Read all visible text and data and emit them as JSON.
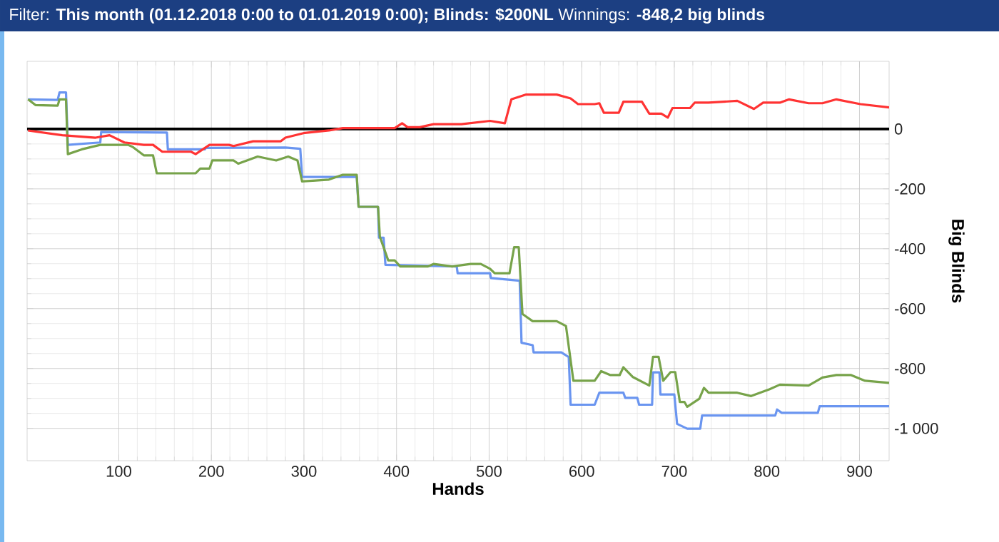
{
  "chart_data": {
    "type": "line",
    "title": "Filter: **This month (01.12.2018 0:00 to 01.01.2019 0:00); Blinds: $200NL** Winnings: **-848,2 big blinds**",
    "xlabel": "Hands",
    "ylabel": "Big Blinds",
    "xlim": [
      1,
      932
    ],
    "ylim": [
      -1108,
      226
    ],
    "xticks": [
      100,
      200,
      300,
      400,
      500,
      600,
      700,
      800,
      900
    ],
    "yticks": [
      0,
      -200,
      -400,
      -600,
      -800,
      {
        "value": -1000,
        "label": "-1 000"
      }
    ],
    "grid": true,
    "ref_lines": [
      {
        "axis": "y",
        "value": 0,
        "color": "#000000"
      }
    ],
    "series": [
      {
        "color": "#6a95f0",
        "x": [
          2,
          34,
          36,
          43,
          45,
          80,
          81,
          152,
          153,
          193,
          194,
          280,
          296,
          298,
          357,
          359,
          380,
          381,
          386,
          388,
          465,
          466,
          501,
          502,
          533,
          535,
          547,
          548,
          578,
          586,
          588,
          614,
          619,
          645,
          647,
          660,
          662,
          676,
          677,
          684,
          685,
          700,
          703,
          714,
          728,
          730,
          809,
          811,
          816,
          855,
          857,
          932
        ],
        "values": [
          99,
          97,
          122,
          122,
          -53,
          -45,
          -10,
          -12,
          -68,
          -68,
          -63,
          -62,
          -66,
          -160,
          -160,
          -260,
          -260,
          -363,
          -363,
          -454,
          -459,
          -482,
          -482,
          -498,
          -507,
          -714,
          -722,
          -746,
          -746,
          -762,
          -921,
          -921,
          -881,
          -881,
          -898,
          -898,
          -921,
          -921,
          -813,
          -813,
          -887,
          -887,
          -985,
          -1001,
          -1001,
          -957,
          -957,
          -937,
          -948,
          -948,
          -926,
          -926
        ]
      },
      {
        "color": "#77a34a",
        "x": [
          2,
          10,
          34,
          36,
          43,
          45,
          60,
          80,
          110,
          115,
          127,
          137,
          141,
          157,
          183,
          188,
          198,
          201,
          224,
          229,
          250,
          270,
          283,
          293,
          298,
          327,
          342,
          357,
          359,
          380,
          382,
          391,
          398,
          404,
          434,
          440,
          460,
          480,
          491,
          501,
          506,
          522,
          527,
          532,
          536,
          547,
          573,
          583,
          591,
          614,
          621,
          631,
          641,
          645,
          655,
          673,
          677,
          683,
          688,
          696,
          701,
          706,
          711,
          714,
          727,
          732,
          737,
          768,
          783,
          803,
          814,
          845,
          860,
          875,
          891,
          906,
          932
        ],
        "values": [
          99,
          80,
          78,
          99,
          99,
          -84,
          -68,
          -53,
          -53,
          -60,
          -88,
          -88,
          -148,
          -148,
          -148,
          -132,
          -132,
          -105,
          -105,
          -116,
          -92,
          -105,
          -92,
          -105,
          -175,
          -169,
          -153,
          -153,
          -260,
          -260,
          -360,
          -439,
          -439,
          -459,
          -459,
          -451,
          -459,
          -451,
          -451,
          -467,
          -482,
          -482,
          -395,
          -395,
          -618,
          -642,
          -642,
          -658,
          -841,
          -841,
          -809,
          -822,
          -822,
          -796,
          -828,
          -857,
          -761,
          -761,
          -841,
          -812,
          -812,
          -912,
          -912,
          -928,
          -901,
          -865,
          -881,
          -881,
          -892,
          -869,
          -854,
          -857,
          -830,
          -822,
          -822,
          -841,
          -848
        ]
      },
      {
        "color": "#ff3333",
        "x": [
          2,
          39,
          75,
          90,
          106,
          127,
          137,
          147,
          178,
          183,
          198,
          219,
          224,
          245,
          275,
          280,
          301,
          327,
          342,
          398,
          406,
          412,
          425,
          440,
          470,
          501,
          517,
          524,
          540,
          573,
          588,
          596,
          614,
          619,
          624,
          640,
          645,
          665,
          673,
          686,
          693,
          698,
          717,
          722,
          737,
          768,
          786,
          796,
          814,
          824,
          845,
          860,
          875,
          901,
          932
        ],
        "values": [
          -5,
          -21,
          -29,
          -21,
          -45,
          -53,
          -53,
          -76,
          -76,
          -84,
          -53,
          -53,
          -57,
          -41,
          -41,
          -29,
          -13,
          -5,
          3,
          3,
          19,
          6,
          6,
          16,
          16,
          27,
          19,
          99,
          115,
          115,
          102,
          83,
          83,
          86,
          54,
          54,
          91,
          91,
          51,
          51,
          38,
          70,
          70,
          88,
          88,
          94,
          67,
          88,
          88,
          99,
          86,
          86,
          99,
          83,
          72
        ]
      }
    ]
  }
}
